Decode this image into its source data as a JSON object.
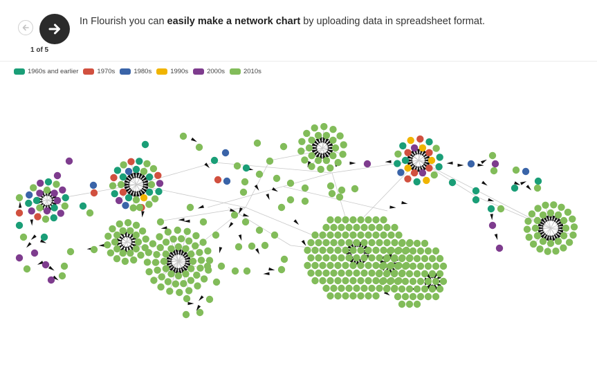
{
  "navigation": {
    "counter": "1 of 5",
    "prev_icon": "arrow-left-icon",
    "next_icon": "arrow-right-icon"
  },
  "caption": {
    "before": "In Flourish you can ",
    "emphasis": "easily make a network chart",
    "after": " by uploading data in spreadsheet format."
  },
  "legend": [
    {
      "label": "1960s and earlier",
      "color": "#1a9e77"
    },
    {
      "label": "1970s",
      "color": "#d1503f"
    },
    {
      "label": "1980s",
      "color": "#3a64a8"
    },
    {
      "label": "1990s",
      "color": "#f0b400"
    },
    {
      "label": "2000s",
      "color": "#7e3c8e"
    },
    {
      "label": "2010s",
      "color": "#82bc5a"
    }
  ],
  "colors": {
    "link": "#c8c8c8",
    "arrow": "#111111",
    "node_default": "#82bc5a"
  }
}
